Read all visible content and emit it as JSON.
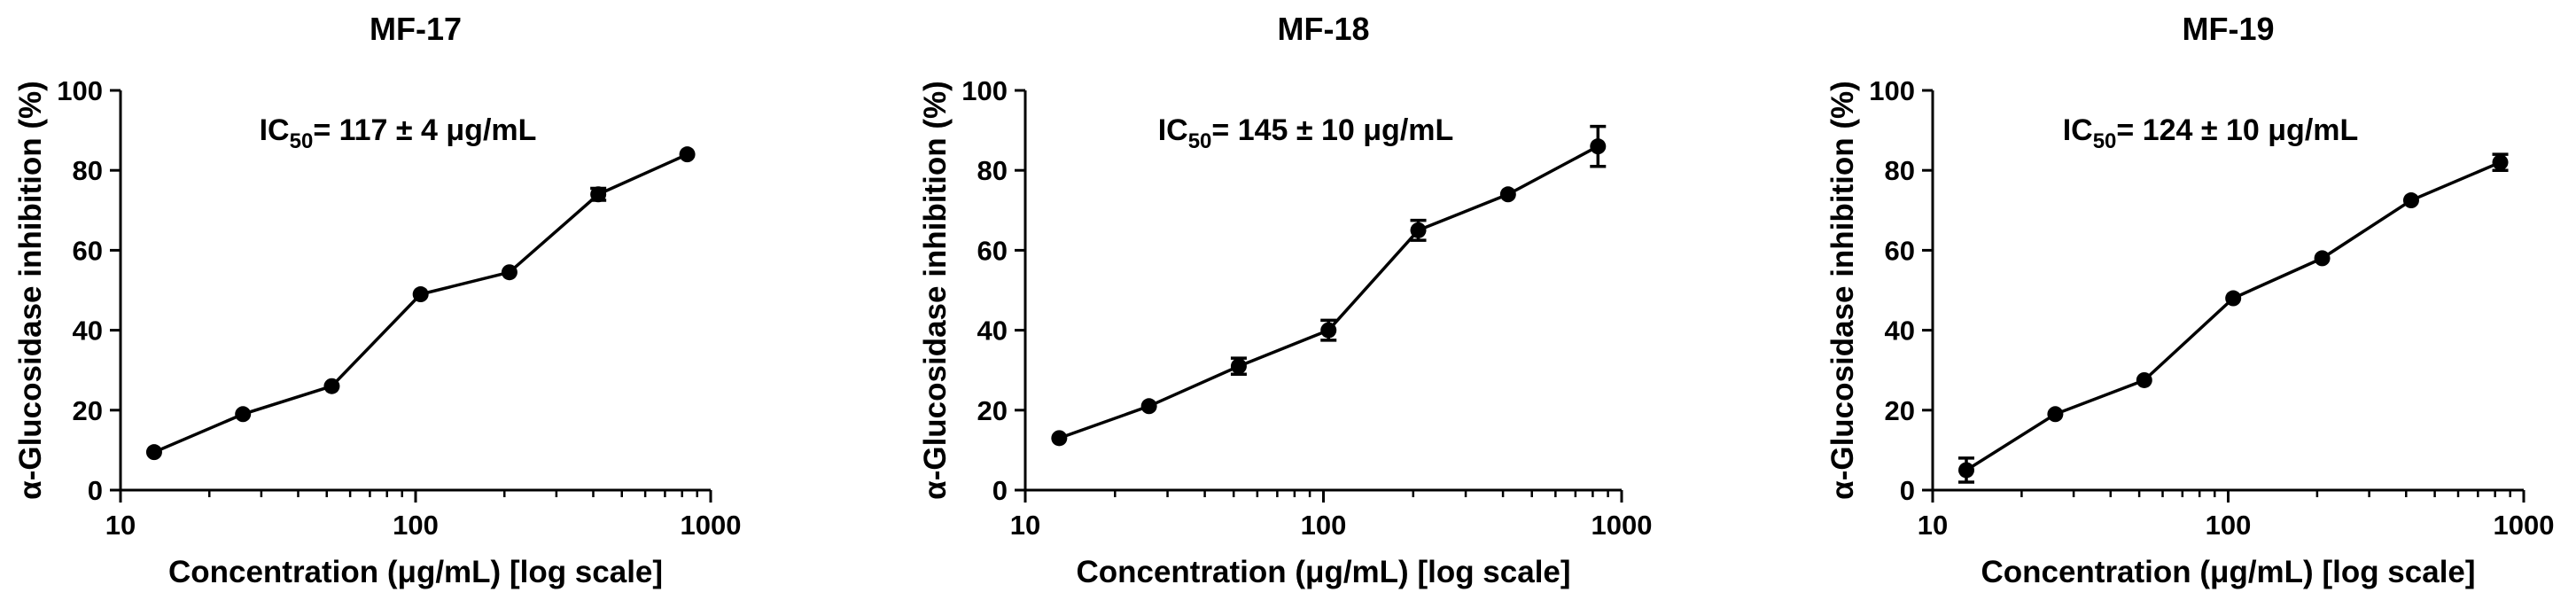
{
  "chart_data": [
    {
      "type": "line",
      "title": "MF-17",
      "xlabel": "Concentration (μg/mL) [log scale]",
      "ylabel": "α-Glucosidase inhibition (%)",
      "xscale": "log",
      "xlim": [
        10,
        1000
      ],
      "ylim": [
        0,
        100
      ],
      "xticks": [
        10,
        100,
        1000
      ],
      "yticks": [
        0,
        20,
        40,
        60,
        80,
        100
      ],
      "annotation": {
        "prefix": "IC",
        "sub": "50",
        "text": "= 117 ± 4 μg/mL"
      },
      "x": [
        13,
        26,
        52,
        104,
        208,
        416,
        833
      ],
      "y": [
        9.5,
        19,
        26,
        49,
        54.5,
        74,
        84
      ],
      "error": [
        0,
        0,
        0,
        0,
        0,
        1.5,
        0
      ]
    },
    {
      "type": "line",
      "title": "MF-18",
      "xlabel": "Concentration (μg/mL) [log scale]",
      "ylabel": "α-Glucosidase inhibition (%)",
      "xscale": "log",
      "xlim": [
        10,
        1000
      ],
      "ylim": [
        0,
        100
      ],
      "xticks": [
        10,
        100,
        1000
      ],
      "yticks": [
        0,
        20,
        40,
        60,
        80,
        100
      ],
      "annotation": {
        "prefix": "IC",
        "sub": "50",
        "text": "= 145 ± 10 μg/mL"
      },
      "x": [
        13,
        26,
        52,
        104,
        208,
        416,
        833
      ],
      "y": [
        13,
        21,
        31,
        40,
        65,
        74,
        86
      ],
      "error": [
        0,
        0,
        2,
        2.5,
        2.5,
        0,
        5
      ]
    },
    {
      "type": "line",
      "title": "MF-19",
      "xlabel": "Concentration (μg/mL) [log scale]",
      "ylabel": "α-Glucosidase inhibition (%)",
      "xscale": "log",
      "xlim": [
        10,
        1000
      ],
      "ylim": [
        0,
        100
      ],
      "xticks": [
        10,
        100,
        1000
      ],
      "yticks": [
        0,
        20,
        40,
        60,
        80,
        100
      ],
      "annotation": {
        "prefix": "IC",
        "sub": "50",
        "text": "= 124 ± 10 μg/mL"
      },
      "x": [
        13,
        26,
        52,
        104,
        208,
        416,
        833
      ],
      "y": [
        5,
        19,
        27.5,
        48,
        58,
        72.5,
        82
      ],
      "error": [
        3,
        0,
        0,
        0,
        0,
        0,
        2
      ]
    }
  ]
}
